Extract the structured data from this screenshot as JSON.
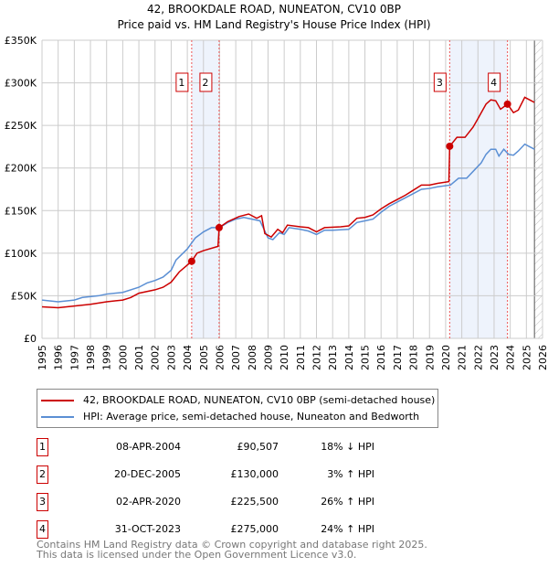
{
  "chart_data": {
    "type": "line",
    "title": "42, BROOKDALE ROAD, NUNEATON, CV10 0BP",
    "subtitle": "Price paid vs. HM Land Registry's House Price Index (HPI)",
    "xlim": [
      1995,
      2026
    ],
    "ylim": [
      0,
      350000
    ],
    "y_ticks": [
      {
        "v": 0,
        "label": "£0"
      },
      {
        "v": 50000,
        "label": "£50K"
      },
      {
        "v": 100000,
        "label": "£100K"
      },
      {
        "v": 150000,
        "label": "£150K"
      },
      {
        "v": 200000,
        "label": "£200K"
      },
      {
        "v": 250000,
        "label": "£250K"
      },
      {
        "v": 300000,
        "label": "£300K"
      },
      {
        "v": 350000,
        "label": "£350K"
      }
    ],
    "x_ticks": [
      "1995",
      "1996",
      "1997",
      "1998",
      "1999",
      "2000",
      "2001",
      "2002",
      "2003",
      "2004",
      "2005",
      "2006",
      "2007",
      "2008",
      "2009",
      "2010",
      "2011",
      "2012",
      "2013",
      "2014",
      "2015",
      "2016",
      "2017",
      "2018",
      "2019",
      "2020",
      "2021",
      "2022",
      "2023",
      "2024",
      "2025",
      "2026"
    ],
    "grid": true,
    "hatched_from": 2025.5,
    "colors": {
      "property": "#cc0000",
      "hpi": "#5b8fd4",
      "shade": "#eef3fc"
    },
    "series": [
      {
        "name": "42, BROOKDALE ROAD, NUNEATON, CV10 0BP (semi-detached house)",
        "key": "property",
        "points": [
          [
            1995,
            37000
          ],
          [
            1996,
            36000
          ],
          [
            1997,
            38000
          ],
          [
            1998,
            40000
          ],
          [
            1999,
            43000
          ],
          [
            2000,
            45000
          ],
          [
            2000.5,
            48000
          ],
          [
            2001,
            53000
          ],
          [
            2002,
            57000
          ],
          [
            2002.5,
            60000
          ],
          [
            2003,
            66000
          ],
          [
            2003.5,
            78000
          ],
          [
            2004.27,
            90507
          ],
          [
            2004.6,
            100000
          ],
          [
            2005,
            103000
          ],
          [
            2005.9,
            108000
          ],
          [
            2005.97,
            130000
          ],
          [
            2006.5,
            137000
          ],
          [
            2007.2,
            143000
          ],
          [
            2007.8,
            146000
          ],
          [
            2008.3,
            141000
          ],
          [
            2008.6,
            144000
          ],
          [
            2008.8,
            123000
          ],
          [
            2009.2,
            119000
          ],
          [
            2009.6,
            128000
          ],
          [
            2009.9,
            124000
          ],
          [
            2010.2,
            133000
          ],
          [
            2011,
            131000
          ],
          [
            2011.5,
            130000
          ],
          [
            2012,
            125000
          ],
          [
            2012.5,
            130000
          ],
          [
            2013.5,
            131000
          ],
          [
            2014,
            132000
          ],
          [
            2014.5,
            141000
          ],
          [
            2015,
            142000
          ],
          [
            2015.5,
            145000
          ],
          [
            2016,
            152000
          ],
          [
            2016.5,
            158000
          ],
          [
            2017,
            163000
          ],
          [
            2017.5,
            168000
          ],
          [
            2018,
            174000
          ],
          [
            2018.5,
            180000
          ],
          [
            2019,
            180000
          ],
          [
            2019.5,
            182000
          ],
          [
            2020.2,
            184000
          ],
          [
            2020.25,
            225500
          ],
          [
            2020.7,
            236000
          ],
          [
            2021.2,
            236000
          ],
          [
            2021.7,
            248000
          ],
          [
            2022,
            258000
          ],
          [
            2022.5,
            275000
          ],
          [
            2022.8,
            280000
          ],
          [
            2023.1,
            279000
          ],
          [
            2023.4,
            269000
          ],
          [
            2023.83,
            275000
          ],
          [
            2024.2,
            265000
          ],
          [
            2024.5,
            268000
          ],
          [
            2024.9,
            283000
          ],
          [
            2025.2,
            280000
          ],
          [
            2025.5,
            277000
          ]
        ]
      },
      {
        "name": "HPI: Average price, semi-detached house, Nuneaton and Bedworth",
        "key": "hpi",
        "points": [
          [
            1995,
            45000
          ],
          [
            1996,
            43000
          ],
          [
            1997,
            45000
          ],
          [
            1997.5,
            48000
          ],
          [
            1998.5,
            50000
          ],
          [
            1999,
            52000
          ],
          [
            2000,
            54000
          ],
          [
            2001,
            60000
          ],
          [
            2001.5,
            65000
          ],
          [
            2002,
            68000
          ],
          [
            2002.5,
            72000
          ],
          [
            2003,
            80000
          ],
          [
            2003.3,
            92000
          ],
          [
            2004,
            105000
          ],
          [
            2004.5,
            118000
          ],
          [
            2005,
            125000
          ],
          [
            2005.5,
            130000
          ],
          [
            2006,
            130000
          ],
          [
            2006.5,
            136000
          ],
          [
            2007,
            140000
          ],
          [
            2007.5,
            142000
          ],
          [
            2008,
            140000
          ],
          [
            2008.5,
            138000
          ],
          [
            2009,
            118000
          ],
          [
            2009.3,
            116000
          ],
          [
            2009.7,
            124000
          ],
          [
            2010,
            122000
          ],
          [
            2010.3,
            130000
          ],
          [
            2011,
            128000
          ],
          [
            2011.5,
            126000
          ],
          [
            2012,
            122000
          ],
          [
            2012.5,
            127000
          ],
          [
            2013,
            127000
          ],
          [
            2014,
            128000
          ],
          [
            2014.5,
            136000
          ],
          [
            2015,
            138000
          ],
          [
            2015.5,
            140000
          ],
          [
            2016,
            148000
          ],
          [
            2016.5,
            155000
          ],
          [
            2017,
            160000
          ],
          [
            2017.5,
            165000
          ],
          [
            2018,
            170000
          ],
          [
            2018.5,
            175000
          ],
          [
            2019,
            176000
          ],
          [
            2019.5,
            178000
          ],
          [
            2020.3,
            180000
          ],
          [
            2020.8,
            188000
          ],
          [
            2021.3,
            188000
          ],
          [
            2021.8,
            198000
          ],
          [
            2022.2,
            206000
          ],
          [
            2022.5,
            216000
          ],
          [
            2022.8,
            222000
          ],
          [
            2023.1,
            222000
          ],
          [
            2023.3,
            214000
          ],
          [
            2023.6,
            222000
          ],
          [
            2023.9,
            216000
          ],
          [
            2024.2,
            215000
          ],
          [
            2024.5,
            220000
          ],
          [
            2024.9,
            228000
          ],
          [
            2025.2,
            225000
          ],
          [
            2025.5,
            222000
          ]
        ]
      }
    ],
    "sales": [
      {
        "n": "1",
        "x": 2004.27,
        "date": "08-APR-2004",
        "price": 90507,
        "price_label": "£90,507",
        "hpi": "18% ↓ HPI"
      },
      {
        "n": "2",
        "x": 2005.97,
        "date": "20-DEC-2005",
        "price": 130000,
        "price_label": "£130,000",
        "hpi": "3% ↑ HPI"
      },
      {
        "n": "3",
        "x": 2020.25,
        "date": "02-APR-2020",
        "price": 225500,
        "price_label": "£225,500",
        "hpi": "26% ↑ HPI"
      },
      {
        "n": "4",
        "x": 2023.83,
        "date": "31-OCT-2023",
        "price": 275000,
        "price_label": "£275,000",
        "hpi": "24% ↑ HPI"
      }
    ],
    "shaded_ranges": [
      [
        "1",
        "2"
      ],
      [
        "3",
        "4"
      ]
    ]
  },
  "legend": {
    "property": "42, BROOKDALE ROAD, NUNEATON, CV10 0BP (semi-detached house)",
    "hpi": "HPI: Average price, semi-detached house, Nuneaton and Bedworth"
  },
  "footer": {
    "line1": "Contains HM Land Registry data © Crown copyright and database right 2025.",
    "line2": "This data is licensed under the Open Government Licence v3.0."
  }
}
